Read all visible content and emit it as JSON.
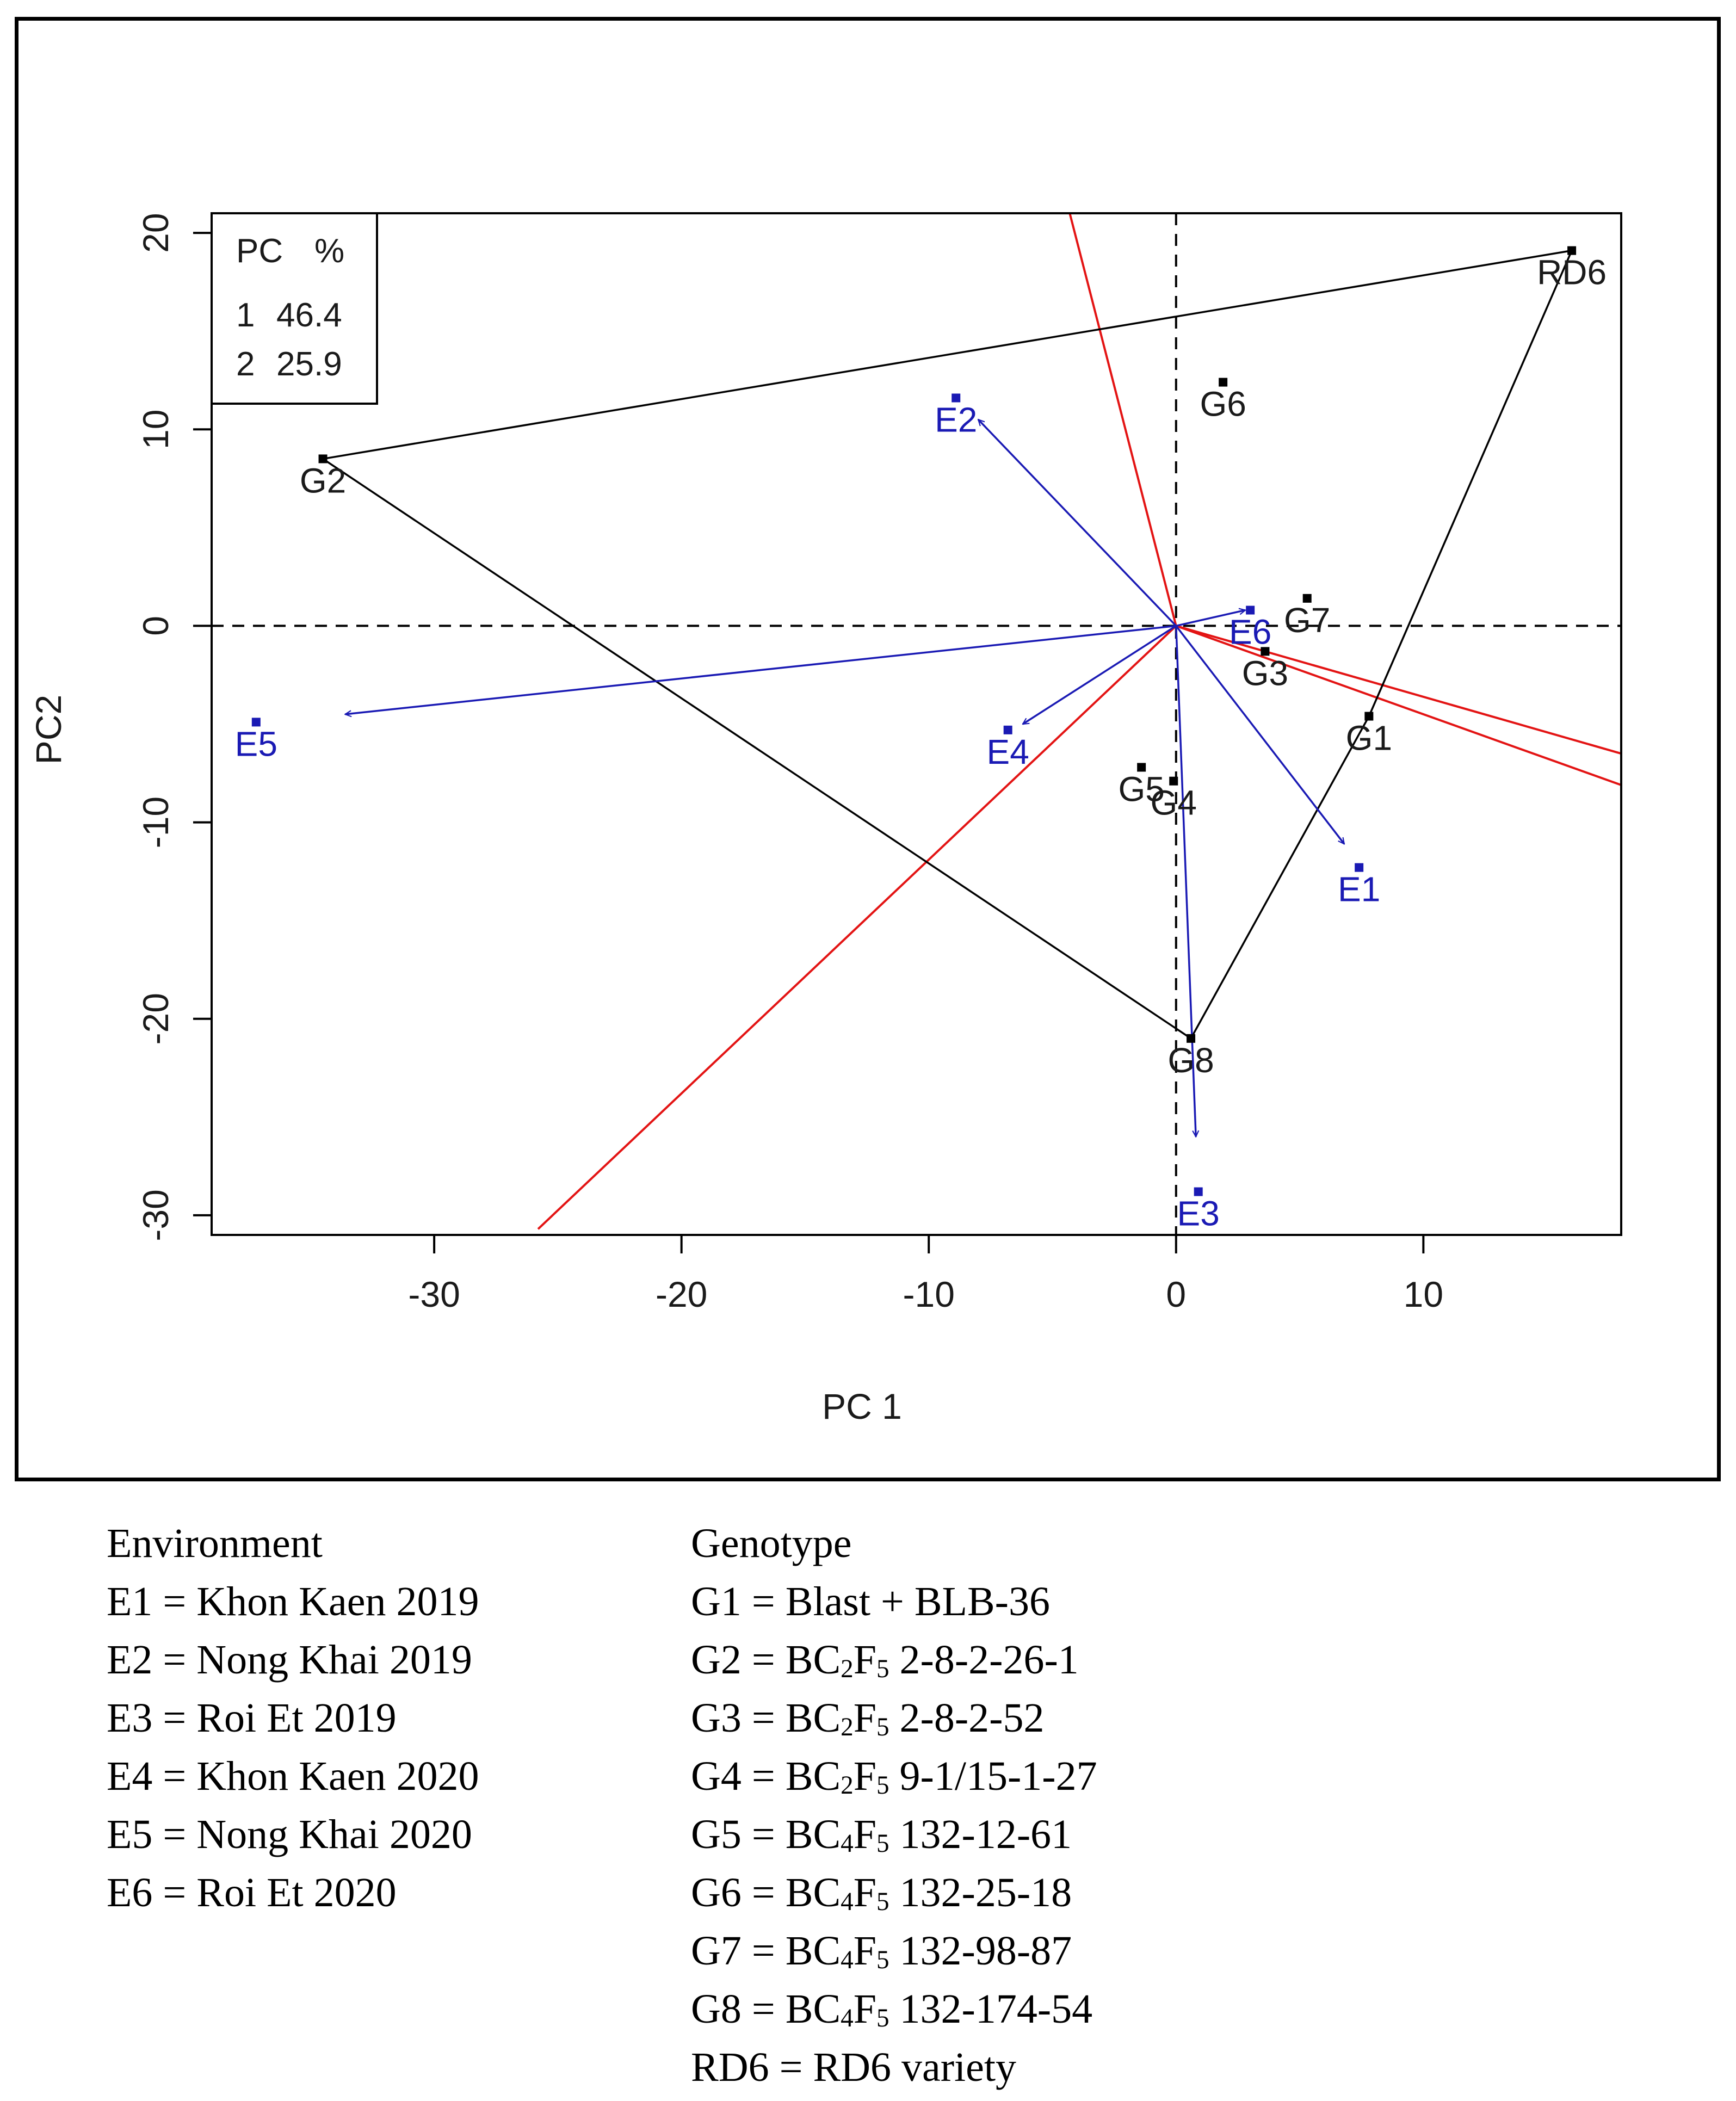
{
  "chart_data": {
    "type": "scatter",
    "subtype": "GGE biplot (which-won-where)",
    "xlabel": "PC 1",
    "ylabel": "PC2",
    "xlim": [
      -39,
      18
    ],
    "ylim": [
      -31,
      21
    ],
    "xticks": [
      -30,
      -20,
      -10,
      0,
      10
    ],
    "xtick_labels": [
      "-30",
      "-20",
      "-10",
      "0",
      "10"
    ],
    "yticks": [
      -30,
      -20,
      -10,
      0,
      10,
      20
    ],
    "ytick_labels": [
      "-30",
      "-20",
      "-10",
      "0",
      "10",
      "20"
    ],
    "pc_table": {
      "header": [
        "PC",
        "%"
      ],
      "rows": [
        [
          "1",
          "46.4"
        ],
        [
          "2",
          "25.9"
        ]
      ]
    },
    "genotypes": [
      {
        "label": "G1",
        "x": 7.8,
        "y": -4.6
      },
      {
        "label": "G2",
        "x": -34.5,
        "y": 8.5
      },
      {
        "label": "G3",
        "x": 3.6,
        "y": -1.3
      },
      {
        "label": "G4",
        "x": -0.1,
        "y": -7.9
      },
      {
        "label": "G5",
        "x": -1.4,
        "y": -7.2
      },
      {
        "label": "G6",
        "x": 1.9,
        "y": 12.4
      },
      {
        "label": "G7",
        "x": 5.3,
        "y": 1.4
      },
      {
        "label": "G8",
        "x": 0.6,
        "y": -21.0
      },
      {
        "label": "RD6",
        "x": 16.0,
        "y": 19.1
      }
    ],
    "environments": [
      {
        "label": "E1",
        "x": 7.4,
        "y": -12.3,
        "arrow_x": 6.8,
        "arrow_y": -11.1
      },
      {
        "label": "E2",
        "x": -8.9,
        "y": 11.6,
        "arrow_x": -8.0,
        "arrow_y": 10.5
      },
      {
        "label": "E3",
        "x": 0.9,
        "y": -28.8,
        "arrow_x": 0.8,
        "arrow_y": -26.0
      },
      {
        "label": "E4",
        "x": -6.8,
        "y": -5.3,
        "arrow_x": -6.2,
        "arrow_y": -5.0
      },
      {
        "label": "E5",
        "x": -37.2,
        "y": -4.9,
        "arrow_x": -33.6,
        "arrow_y": -4.5
      },
      {
        "label": "E6",
        "x": 3.0,
        "y": 0.8,
        "arrow_x": 2.8,
        "arrow_y": 0.8
      }
    ],
    "polygon": [
      "RD6",
      "G2",
      "G8",
      "G1",
      "RD6"
    ],
    "sector_rays": [
      {
        "to_x": -4.3,
        "to_y": 21
      },
      {
        "to_x": 18,
        "to_y": -6.5
      },
      {
        "to_x": 18,
        "to_y": -8.1
      },
      {
        "to_x": -25.8,
        "to_y": -30.7
      }
    ],
    "colors": {
      "genotype": "#000000",
      "environment": "#1a1ab4",
      "ray": "#e31414",
      "polygon": "#000000"
    }
  },
  "legend": {
    "environment": {
      "title": "Environment",
      "items": [
        "E1 = Khon Kaen 2019",
        "E2 = Nong Khai 2019",
        "E3 = Roi Et 2019",
        "E4 = Khon Kaen 2020",
        "E5 = Nong Khai 2020",
        "E6 = Roi Et 2020"
      ]
    },
    "genotype": {
      "title": "Genotype",
      "items": [
        {
          "code": "G1",
          "pre": "Blast + BLB-36",
          "sub1": "",
          "mid": "",
          "sub2": "",
          "post": ""
        },
        {
          "code": "G2",
          "pre": "BC",
          "sub1": "2",
          "mid": "F",
          "sub2": "5",
          "post": " 2-8-2-26-1"
        },
        {
          "code": "G3",
          "pre": "BC",
          "sub1": "2",
          "mid": "F",
          "sub2": "5",
          "post": " 2-8-2-52"
        },
        {
          "code": "G4",
          "pre": "BC",
          "sub1": "2",
          "mid": "F",
          "sub2": "5",
          "post": " 9-1/15-1-27"
        },
        {
          "code": "G5",
          "pre": "BC",
          "sub1": "4",
          "mid": "F",
          "sub2": "5",
          "post": " 132-12-61"
        },
        {
          "code": "G6",
          "pre": "BC",
          "sub1": "4",
          "mid": "F",
          "sub2": "5",
          "post": " 132-25-18"
        },
        {
          "code": "G7",
          "pre": "BC",
          "sub1": "4",
          "mid": "F",
          "sub2": "5",
          "post": " 132-98-87"
        },
        {
          "code": "G8",
          "pre": "BC",
          "sub1": "4",
          "mid": "F",
          "sub2": "5",
          "post": " 132-174-54"
        },
        {
          "code": "RD6",
          "pre": "RD6 variety",
          "sub1": "",
          "mid": "",
          "sub2": "",
          "post": ""
        }
      ]
    }
  }
}
